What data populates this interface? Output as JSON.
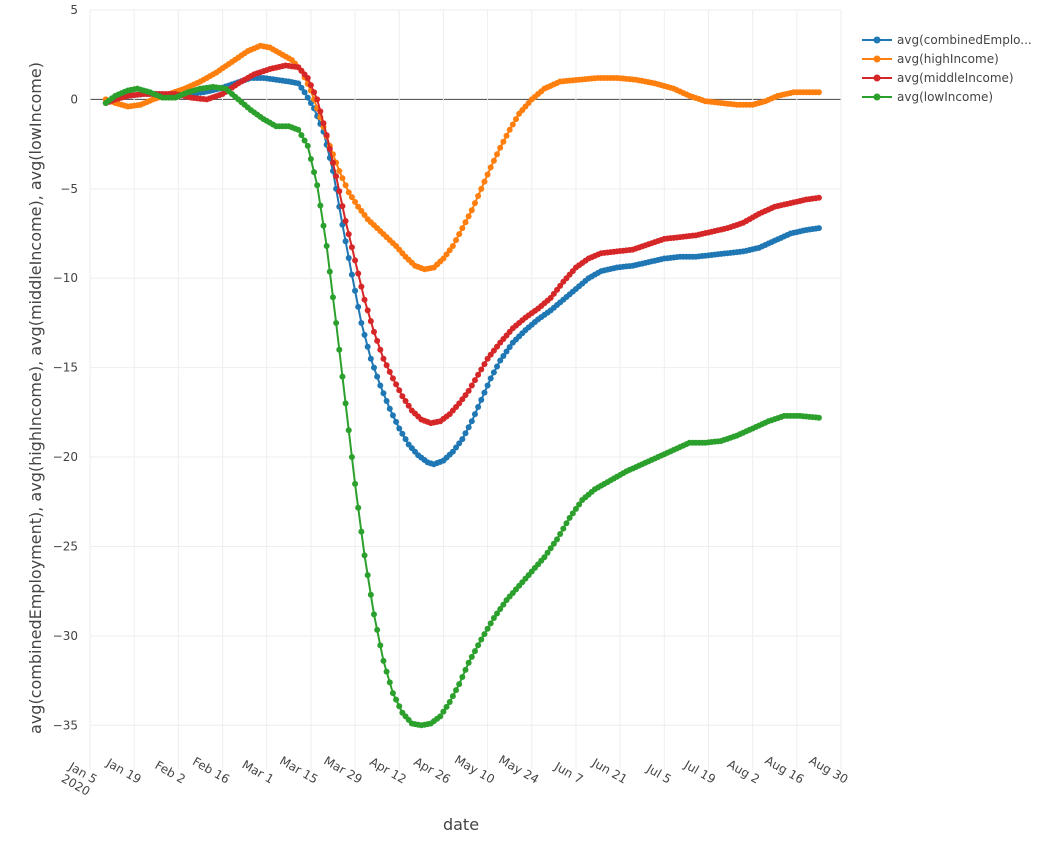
{
  "chart_data": {
    "type": "line",
    "title": "",
    "xlabel": "date",
    "ylabel": "avg(combinedEmployment), avg(highIncome), avg(middleIncome), avg(lowIncome)",
    "x_range": [
      "2020-01-05",
      "2020-08-30"
    ],
    "ylim": [
      -37.5,
      5
    ],
    "grid": true,
    "legend_position": "top-right",
    "x_ticks": [
      {
        "date": "2020-01-05",
        "label": [
          "Jan 5",
          "2020"
        ]
      },
      {
        "date": "2020-01-19",
        "label": [
          "Jan 19"
        ]
      },
      {
        "date": "2020-02-02",
        "label": [
          "Feb 2"
        ]
      },
      {
        "date": "2020-02-16",
        "label": [
          "Feb 16"
        ]
      },
      {
        "date": "2020-03-01",
        "label": [
          "Mar 1"
        ]
      },
      {
        "date": "2020-03-15",
        "label": [
          "Mar 15"
        ]
      },
      {
        "date": "2020-03-29",
        "label": [
          "Mar 29"
        ]
      },
      {
        "date": "2020-04-12",
        "label": [
          "Apr 12"
        ]
      },
      {
        "date": "2020-04-26",
        "label": [
          "Apr 26"
        ]
      },
      {
        "date": "2020-05-10",
        "label": [
          "May 10"
        ]
      },
      {
        "date": "2020-05-24",
        "label": [
          "May 24"
        ]
      },
      {
        "date": "2020-06-07",
        "label": [
          "Jun 7"
        ]
      },
      {
        "date": "2020-06-21",
        "label": [
          "Jun 21"
        ]
      },
      {
        "date": "2020-07-05",
        "label": [
          "Jul 5"
        ]
      },
      {
        "date": "2020-07-19",
        "label": [
          "Jul 19"
        ]
      },
      {
        "date": "2020-08-02",
        "label": [
          "Aug 2"
        ]
      },
      {
        "date": "2020-08-16",
        "label": [
          "Aug 16"
        ]
      },
      {
        "date": "2020-08-30",
        "label": [
          "Aug 30"
        ]
      }
    ],
    "y_ticks": [
      5,
      0,
      -5,
      -10,
      -15,
      -20,
      -25,
      -30,
      -35
    ],
    "y_tick_labels": [
      "5",
      "0",
      "−5",
      "−10",
      "−15",
      "−20",
      "−25",
      "−30",
      "−35"
    ],
    "series": [
      {
        "name": "avg(combinedEmplo...",
        "color": "#1f77b4",
        "points": [
          [
            "2020-01-10",
            -0.2
          ],
          [
            "2020-01-13",
            0.0
          ],
          [
            "2020-01-17",
            0.2
          ],
          [
            "2020-01-22",
            0.3
          ],
          [
            "2020-01-27",
            0.3
          ],
          [
            "2020-02-01",
            0.2
          ],
          [
            "2020-02-05",
            0.3
          ],
          [
            "2020-02-10",
            0.4
          ],
          [
            "2020-02-15",
            0.6
          ],
          [
            "2020-02-20",
            0.9
          ],
          [
            "2020-02-25",
            1.2
          ],
          [
            "2020-02-29",
            1.2
          ],
          [
            "2020-03-04",
            1.1
          ],
          [
            "2020-03-08",
            1.0
          ],
          [
            "2020-03-11",
            0.9
          ],
          [
            "2020-03-13",
            0.4
          ],
          [
            "2020-03-16",
            -0.5
          ],
          [
            "2020-03-19",
            -1.8
          ],
          [
            "2020-03-22",
            -4.0
          ],
          [
            "2020-03-25",
            -7.0
          ],
          [
            "2020-03-28",
            -9.8
          ],
          [
            "2020-03-31",
            -12.5
          ],
          [
            "2020-04-03",
            -14.5
          ],
          [
            "2020-04-06",
            -16.0
          ],
          [
            "2020-04-09",
            -17.3
          ],
          [
            "2020-04-12",
            -18.4
          ],
          [
            "2020-04-15",
            -19.3
          ],
          [
            "2020-04-18",
            -19.9
          ],
          [
            "2020-04-21",
            -20.3
          ],
          [
            "2020-04-23",
            -20.4
          ],
          [
            "2020-04-26",
            -20.2
          ],
          [
            "2020-04-29",
            -19.7
          ],
          [
            "2020-05-02",
            -19.0
          ],
          [
            "2020-05-05",
            -18.0
          ],
          [
            "2020-05-08",
            -16.8
          ],
          [
            "2020-05-11",
            -15.6
          ],
          [
            "2020-05-14",
            -14.6
          ],
          [
            "2020-05-18",
            -13.6
          ],
          [
            "2020-05-22",
            -12.9
          ],
          [
            "2020-05-26",
            -12.3
          ],
          [
            "2020-05-30",
            -11.8
          ],
          [
            "2020-06-03",
            -11.2
          ],
          [
            "2020-06-07",
            -10.6
          ],
          [
            "2020-06-11",
            -10.0
          ],
          [
            "2020-06-15",
            -9.6
          ],
          [
            "2020-06-20",
            -9.4
          ],
          [
            "2020-06-25",
            -9.3
          ],
          [
            "2020-06-30",
            -9.1
          ],
          [
            "2020-07-05",
            -8.9
          ],
          [
            "2020-07-10",
            -8.8
          ],
          [
            "2020-07-15",
            -8.8
          ],
          [
            "2020-07-20",
            -8.7
          ],
          [
            "2020-07-25",
            -8.6
          ],
          [
            "2020-07-30",
            -8.5
          ],
          [
            "2020-08-04",
            -8.3
          ],
          [
            "2020-08-09",
            -7.9
          ],
          [
            "2020-08-14",
            -7.5
          ],
          [
            "2020-08-19",
            -7.3
          ],
          [
            "2020-08-23",
            -7.2
          ]
        ]
      },
      {
        "name": "avg(highIncome)",
        "color": "#ff7f0e",
        "points": [
          [
            "2020-01-10",
            0.0
          ],
          [
            "2020-01-13",
            -0.2
          ],
          [
            "2020-01-17",
            -0.4
          ],
          [
            "2020-01-21",
            -0.3
          ],
          [
            "2020-01-25",
            0.0
          ],
          [
            "2020-01-30",
            0.3
          ],
          [
            "2020-02-04",
            0.6
          ],
          [
            "2020-02-09",
            1.0
          ],
          [
            "2020-02-14",
            1.5
          ],
          [
            "2020-02-19",
            2.1
          ],
          [
            "2020-02-24",
            2.7
          ],
          [
            "2020-02-28",
            3.0
          ],
          [
            "2020-03-02",
            2.9
          ],
          [
            "2020-03-05",
            2.6
          ],
          [
            "2020-03-09",
            2.2
          ],
          [
            "2020-03-12",
            1.6
          ],
          [
            "2020-03-15",
            0.5
          ],
          [
            "2020-03-18",
            -1.0
          ],
          [
            "2020-03-21",
            -2.6
          ],
          [
            "2020-03-24",
            -4.0
          ],
          [
            "2020-03-27",
            -5.2
          ],
          [
            "2020-03-30",
            -6.0
          ],
          [
            "2020-04-02",
            -6.7
          ],
          [
            "2020-04-05",
            -7.2
          ],
          [
            "2020-04-08",
            -7.7
          ],
          [
            "2020-04-11",
            -8.2
          ],
          [
            "2020-04-14",
            -8.8
          ],
          [
            "2020-04-17",
            -9.3
          ],
          [
            "2020-04-20",
            -9.5
          ],
          [
            "2020-04-23",
            -9.4
          ],
          [
            "2020-04-26",
            -8.9
          ],
          [
            "2020-04-29",
            -8.2
          ],
          [
            "2020-05-02",
            -7.2
          ],
          [
            "2020-05-05",
            -6.2
          ],
          [
            "2020-05-08",
            -5.0
          ],
          [
            "2020-05-11",
            -3.8
          ],
          [
            "2020-05-14",
            -2.7
          ],
          [
            "2020-05-17",
            -1.7
          ],
          [
            "2020-05-20",
            -0.8
          ],
          [
            "2020-05-24",
            0.0
          ],
          [
            "2020-05-28",
            0.6
          ],
          [
            "2020-06-02",
            1.0
          ],
          [
            "2020-06-08",
            1.1
          ],
          [
            "2020-06-14",
            1.2
          ],
          [
            "2020-06-20",
            1.2
          ],
          [
            "2020-06-26",
            1.1
          ],
          [
            "2020-07-02",
            0.9
          ],
          [
            "2020-07-08",
            0.6
          ],
          [
            "2020-07-13",
            0.2
          ],
          [
            "2020-07-18",
            -0.1
          ],
          [
            "2020-07-23",
            -0.2
          ],
          [
            "2020-07-28",
            -0.3
          ],
          [
            "2020-08-02",
            -0.3
          ],
          [
            "2020-08-06",
            -0.1
          ],
          [
            "2020-08-10",
            0.2
          ],
          [
            "2020-08-15",
            0.4
          ],
          [
            "2020-08-23",
            0.4
          ]
        ]
      },
      {
        "name": "avg(middleIncome)",
        "color": "#d62728",
        "points": [
          [
            "2020-01-10",
            -0.2
          ],
          [
            "2020-01-13",
            0.0
          ],
          [
            "2020-01-17",
            0.2
          ],
          [
            "2020-01-22",
            0.3
          ],
          [
            "2020-01-27",
            0.3
          ],
          [
            "2020-02-01",
            0.3
          ],
          [
            "2020-02-06",
            0.1
          ],
          [
            "2020-02-11",
            0.0
          ],
          [
            "2020-02-16",
            0.3
          ],
          [
            "2020-02-21",
            0.9
          ],
          [
            "2020-02-26",
            1.4
          ],
          [
            "2020-03-02",
            1.7
          ],
          [
            "2020-03-07",
            1.9
          ],
          [
            "2020-03-11",
            1.8
          ],
          [
            "2020-03-14",
            1.2
          ],
          [
            "2020-03-17",
            0.0
          ],
          [
            "2020-03-20",
            -2.0
          ],
          [
            "2020-03-23",
            -4.3
          ],
          [
            "2020-03-26",
            -6.8
          ],
          [
            "2020-03-29",
            -9.0
          ],
          [
            "2020-04-01",
            -11.2
          ],
          [
            "2020-04-04",
            -13.0
          ],
          [
            "2020-04-07",
            -14.5
          ],
          [
            "2020-04-10",
            -15.6
          ],
          [
            "2020-04-13",
            -16.6
          ],
          [
            "2020-04-16",
            -17.4
          ],
          [
            "2020-04-19",
            -17.9
          ],
          [
            "2020-04-22",
            -18.1
          ],
          [
            "2020-04-25",
            -18.0
          ],
          [
            "2020-04-28",
            -17.6
          ],
          [
            "2020-05-01",
            -17.0
          ],
          [
            "2020-05-04",
            -16.3
          ],
          [
            "2020-05-07",
            -15.4
          ],
          [
            "2020-05-10",
            -14.5
          ],
          [
            "2020-05-14",
            -13.6
          ],
          [
            "2020-05-18",
            -12.8
          ],
          [
            "2020-05-22",
            -12.2
          ],
          [
            "2020-05-26",
            -11.7
          ],
          [
            "2020-05-30",
            -11.1
          ],
          [
            "2020-06-03",
            -10.2
          ],
          [
            "2020-06-07",
            -9.4
          ],
          [
            "2020-06-11",
            -8.9
          ],
          [
            "2020-06-15",
            -8.6
          ],
          [
            "2020-06-20",
            -8.5
          ],
          [
            "2020-06-25",
            -8.4
          ],
          [
            "2020-06-30",
            -8.1
          ],
          [
            "2020-07-05",
            -7.8
          ],
          [
            "2020-07-10",
            -7.7
          ],
          [
            "2020-07-15",
            -7.6
          ],
          [
            "2020-07-20",
            -7.4
          ],
          [
            "2020-07-25",
            -7.2
          ],
          [
            "2020-07-30",
            -6.9
          ],
          [
            "2020-08-04",
            -6.4
          ],
          [
            "2020-08-09",
            -6.0
          ],
          [
            "2020-08-14",
            -5.8
          ],
          [
            "2020-08-19",
            -5.6
          ],
          [
            "2020-08-23",
            -5.5
          ]
        ]
      },
      {
        "name": "avg(lowIncome)",
        "color": "#2ca02c",
        "points": [
          [
            "2020-01-10",
            -0.2
          ],
          [
            "2020-01-13",
            0.2
          ],
          [
            "2020-01-17",
            0.5
          ],
          [
            "2020-01-20",
            0.6
          ],
          [
            "2020-01-24",
            0.4
          ],
          [
            "2020-01-28",
            0.1
          ],
          [
            "2020-02-01",
            0.1
          ],
          [
            "2020-02-05",
            0.4
          ],
          [
            "2020-02-09",
            0.6
          ],
          [
            "2020-02-13",
            0.7
          ],
          [
            "2020-02-17",
            0.6
          ],
          [
            "2020-02-21",
            0.0
          ],
          [
            "2020-02-25",
            -0.6
          ],
          [
            "2020-02-29",
            -1.1
          ],
          [
            "2020-03-04",
            -1.5
          ],
          [
            "2020-03-08",
            -1.5
          ],
          [
            "2020-03-11",
            -1.7
          ],
          [
            "2020-03-14",
            -2.6
          ],
          [
            "2020-03-17",
            -4.8
          ],
          [
            "2020-03-20",
            -8.2
          ],
          [
            "2020-03-23",
            -12.5
          ],
          [
            "2020-03-26",
            -17.0
          ],
          [
            "2020-03-29",
            -21.5
          ],
          [
            "2020-04-01",
            -25.5
          ],
          [
            "2020-04-04",
            -28.8
          ],
          [
            "2020-04-07",
            -31.4
          ],
          [
            "2020-04-10",
            -33.2
          ],
          [
            "2020-04-13",
            -34.3
          ],
          [
            "2020-04-16",
            -34.9
          ],
          [
            "2020-04-19",
            -35.0
          ],
          [
            "2020-04-22",
            -34.9
          ],
          [
            "2020-04-25",
            -34.5
          ],
          [
            "2020-04-28",
            -33.7
          ],
          [
            "2020-05-01",
            -32.7
          ],
          [
            "2020-05-04",
            -31.5
          ],
          [
            "2020-05-08",
            -30.2
          ],
          [
            "2020-05-12",
            -29.0
          ],
          [
            "2020-05-16",
            -28.0
          ],
          [
            "2020-05-20",
            -27.2
          ],
          [
            "2020-05-24",
            -26.4
          ],
          [
            "2020-05-28",
            -25.6
          ],
          [
            "2020-06-01",
            -24.6
          ],
          [
            "2020-06-05",
            -23.4
          ],
          [
            "2020-06-09",
            -22.4
          ],
          [
            "2020-06-13",
            -21.8
          ],
          [
            "2020-06-18",
            -21.3
          ],
          [
            "2020-06-23",
            -20.8
          ],
          [
            "2020-06-28",
            -20.4
          ],
          [
            "2020-07-03",
            -20.0
          ],
          [
            "2020-07-08",
            -19.6
          ],
          [
            "2020-07-13",
            -19.2
          ],
          [
            "2020-07-18",
            -19.2
          ],
          [
            "2020-07-23",
            -19.1
          ],
          [
            "2020-07-28",
            -18.8
          ],
          [
            "2020-08-02",
            -18.4
          ],
          [
            "2020-08-07",
            -18.0
          ],
          [
            "2020-08-12",
            -17.7
          ],
          [
            "2020-08-17",
            -17.7
          ],
          [
            "2020-08-23",
            -17.8
          ]
        ]
      }
    ]
  }
}
